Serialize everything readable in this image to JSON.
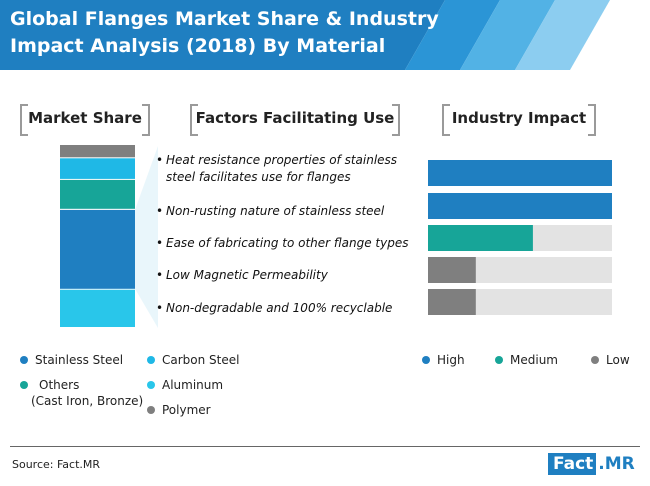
{
  "title": "Global Flanges Market Share & Industry Impact Analysis (2018) By Material",
  "headings": {
    "market_share": "Market Share",
    "factors": "Factors Facilitating Use",
    "impact": "Industry Impact"
  },
  "factors": [
    [
      "Heat resistance properties of stainless",
      "steel facilitates use for flanges"
    ],
    [
      "Non-rusting nature of stainless steel"
    ],
    [
      "Ease of fabricating to other flange types"
    ],
    [
      "Low Magnetic Permeability"
    ],
    [
      "Non-degradable and 100% recyclable"
    ]
  ],
  "factor_bullet": "•",
  "share_legend": {
    "stainless": "Stainless Steel",
    "carbon": "Carbon Steel",
    "others_1": "Others",
    "others_2": "(Cast Iron, Bronze)",
    "aluminum": "Aluminum",
    "polymer": "Polymer"
  },
  "impact_legend": {
    "high": "High",
    "medium": "Medium",
    "low": "Low"
  },
  "source": "Source: Fact.MR",
  "logo": {
    "part1": "Fact",
    "part2": ".MR"
  },
  "colors": {
    "stainless": "#1f7fc1",
    "carbon": "#1fb8e6",
    "others": "#17a598",
    "aluminum": "#29c6ea",
    "polymer": "#7f7f7f",
    "high": "#1f7fc1",
    "medium": "#17a598",
    "low": "#7f7f7f",
    "track": "#e3e3e3",
    "banner": "#1f7fc1"
  },
  "chart_data": [
    {
      "type": "bar",
      "stacked": true,
      "name": "market-share",
      "segments_top_to_bottom": [
        {
          "key": "polymer",
          "value": 8
        },
        {
          "key": "carbon",
          "value": 13
        },
        {
          "key": "others",
          "value": 18
        },
        {
          "key": "stainless",
          "value": 48
        },
        {
          "key": "aluminum",
          "value": 23
        }
      ]
    },
    {
      "type": "bar",
      "orientation": "horizontal",
      "name": "industry-impact",
      "xlim": [
        0,
        100
      ],
      "values": [
        {
          "value": 100,
          "level": "high"
        },
        {
          "value": 100,
          "level": "high"
        },
        {
          "value": 57,
          "level": "medium"
        },
        {
          "value": 26,
          "level": "low"
        },
        {
          "value": 26,
          "level": "low"
        }
      ]
    }
  ]
}
